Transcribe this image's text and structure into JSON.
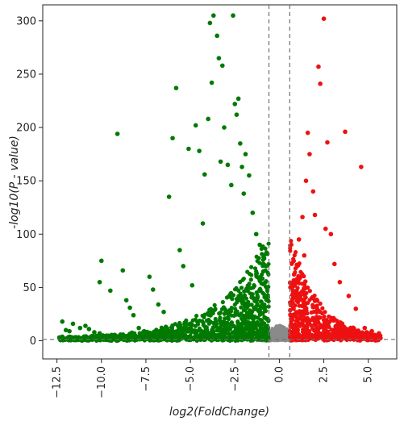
{
  "chart_data": {
    "type": "scatter",
    "title": "",
    "xlabel": "log2(FoldChange)",
    "ylabel": "-log10(P - value)",
    "xlim": [
      -13.3,
      6.6
    ],
    "ylim": [
      -17,
      315
    ],
    "xticks": [
      -12.5,
      -10.0,
      -7.5,
      -5.0,
      -2.5,
      0.0,
      2.5,
      5.0
    ],
    "xtick_labels": [
      "−12.5",
      "−10.0",
      "−7.5",
      "−5.0",
      "−2.5",
      "0.0",
      "2.5",
      "5.0"
    ],
    "yticks": [
      0,
      50,
      100,
      150,
      200,
      250,
      300
    ],
    "ytick_labels": [
      "0",
      "50",
      "100",
      "150",
      "200",
      "250",
      "300"
    ],
    "thresholds": {
      "fold_change_x": [
        -0.585,
        0.585
      ],
      "pvalue_y": 1.3
    },
    "grid": false,
    "legend": "none",
    "colors": {
      "down": "#007a00",
      "up": "#ee1111",
      "ns": "#8a8a8a",
      "threshold_line": "#707070"
    },
    "series": [
      {
        "color": "#007a00",
        "points": [
          [
            -12.2,
            18
          ],
          [
            -12.0,
            10
          ],
          [
            -11.8,
            9
          ],
          [
            -11.6,
            16
          ],
          [
            -11.2,
            12
          ],
          [
            -10.9,
            14
          ],
          [
            -10.7,
            11
          ],
          [
            -10.4,
            8
          ],
          [
            -10.1,
            7
          ],
          [
            -10.0,
            75
          ],
          [
            -10.1,
            55
          ],
          [
            -9.5,
            47
          ],
          [
            -9.1,
            194
          ],
          [
            -8.8,
            66
          ],
          [
            -8.6,
            38
          ],
          [
            -8.4,
            31
          ],
          [
            -8.2,
            24
          ],
          [
            -7.9,
            12
          ],
          [
            -7.6,
            9
          ],
          [
            -7.3,
            60
          ],
          [
            -7.1,
            48
          ],
          [
            -6.8,
            34
          ],
          [
            -6.5,
            27
          ],
          [
            -6.2,
            135
          ],
          [
            -6.0,
            190
          ],
          [
            -5.8,
            237
          ],
          [
            -5.6,
            85
          ],
          [
            -5.4,
            70
          ],
          [
            -5.1,
            180
          ],
          [
            -4.9,
            52
          ],
          [
            -4.7,
            202
          ],
          [
            -4.5,
            178
          ],
          [
            -4.3,
            110
          ],
          [
            -4.2,
            156
          ],
          [
            -4.0,
            208
          ],
          [
            -3.9,
            298
          ],
          [
            -3.8,
            242
          ],
          [
            -3.7,
            305
          ],
          [
            -3.5,
            286
          ],
          [
            -3.4,
            265
          ],
          [
            -3.3,
            168
          ],
          [
            -3.2,
            258
          ],
          [
            -3.1,
            200
          ],
          [
            -2.9,
            165
          ],
          [
            -2.7,
            146
          ],
          [
            -2.6,
            305
          ],
          [
            -2.5,
            222
          ],
          [
            -2.4,
            212
          ],
          [
            -2.3,
            227
          ],
          [
            -2.2,
            185
          ],
          [
            -2.1,
            163
          ],
          [
            -2.0,
            138
          ],
          [
            -1.9,
            175
          ],
          [
            -1.7,
            155
          ],
          [
            -1.5,
            120
          ],
          [
            -1.3,
            100
          ],
          [
            -1.1,
            90
          ],
          [
            -0.9,
            65
          ],
          [
            -0.8,
            28
          ]
        ]
      },
      {
        "color": "#ee1111",
        "points": [
          [
            0.8,
            30
          ],
          [
            0.9,
            45
          ],
          [
            1.0,
            70
          ],
          [
            1.1,
            95
          ],
          [
            1.2,
            60
          ],
          [
            1.3,
            116
          ],
          [
            1.4,
            80
          ],
          [
            1.5,
            150
          ],
          [
            1.6,
            195
          ],
          [
            1.7,
            175
          ],
          [
            1.9,
            140
          ],
          [
            2.0,
            118
          ],
          [
            2.2,
            257
          ],
          [
            2.3,
            241
          ],
          [
            2.5,
            302
          ],
          [
            2.6,
            105
          ],
          [
            2.7,
            186
          ],
          [
            2.9,
            100
          ],
          [
            3.1,
            72
          ],
          [
            3.4,
            55
          ],
          [
            3.7,
            196
          ],
          [
            3.9,
            42
          ],
          [
            4.3,
            30
          ],
          [
            4.6,
            163
          ],
          [
            4.8,
            12
          ],
          [
            5.2,
            9
          ],
          [
            5.6,
            7
          ]
        ]
      }
    ]
  }
}
